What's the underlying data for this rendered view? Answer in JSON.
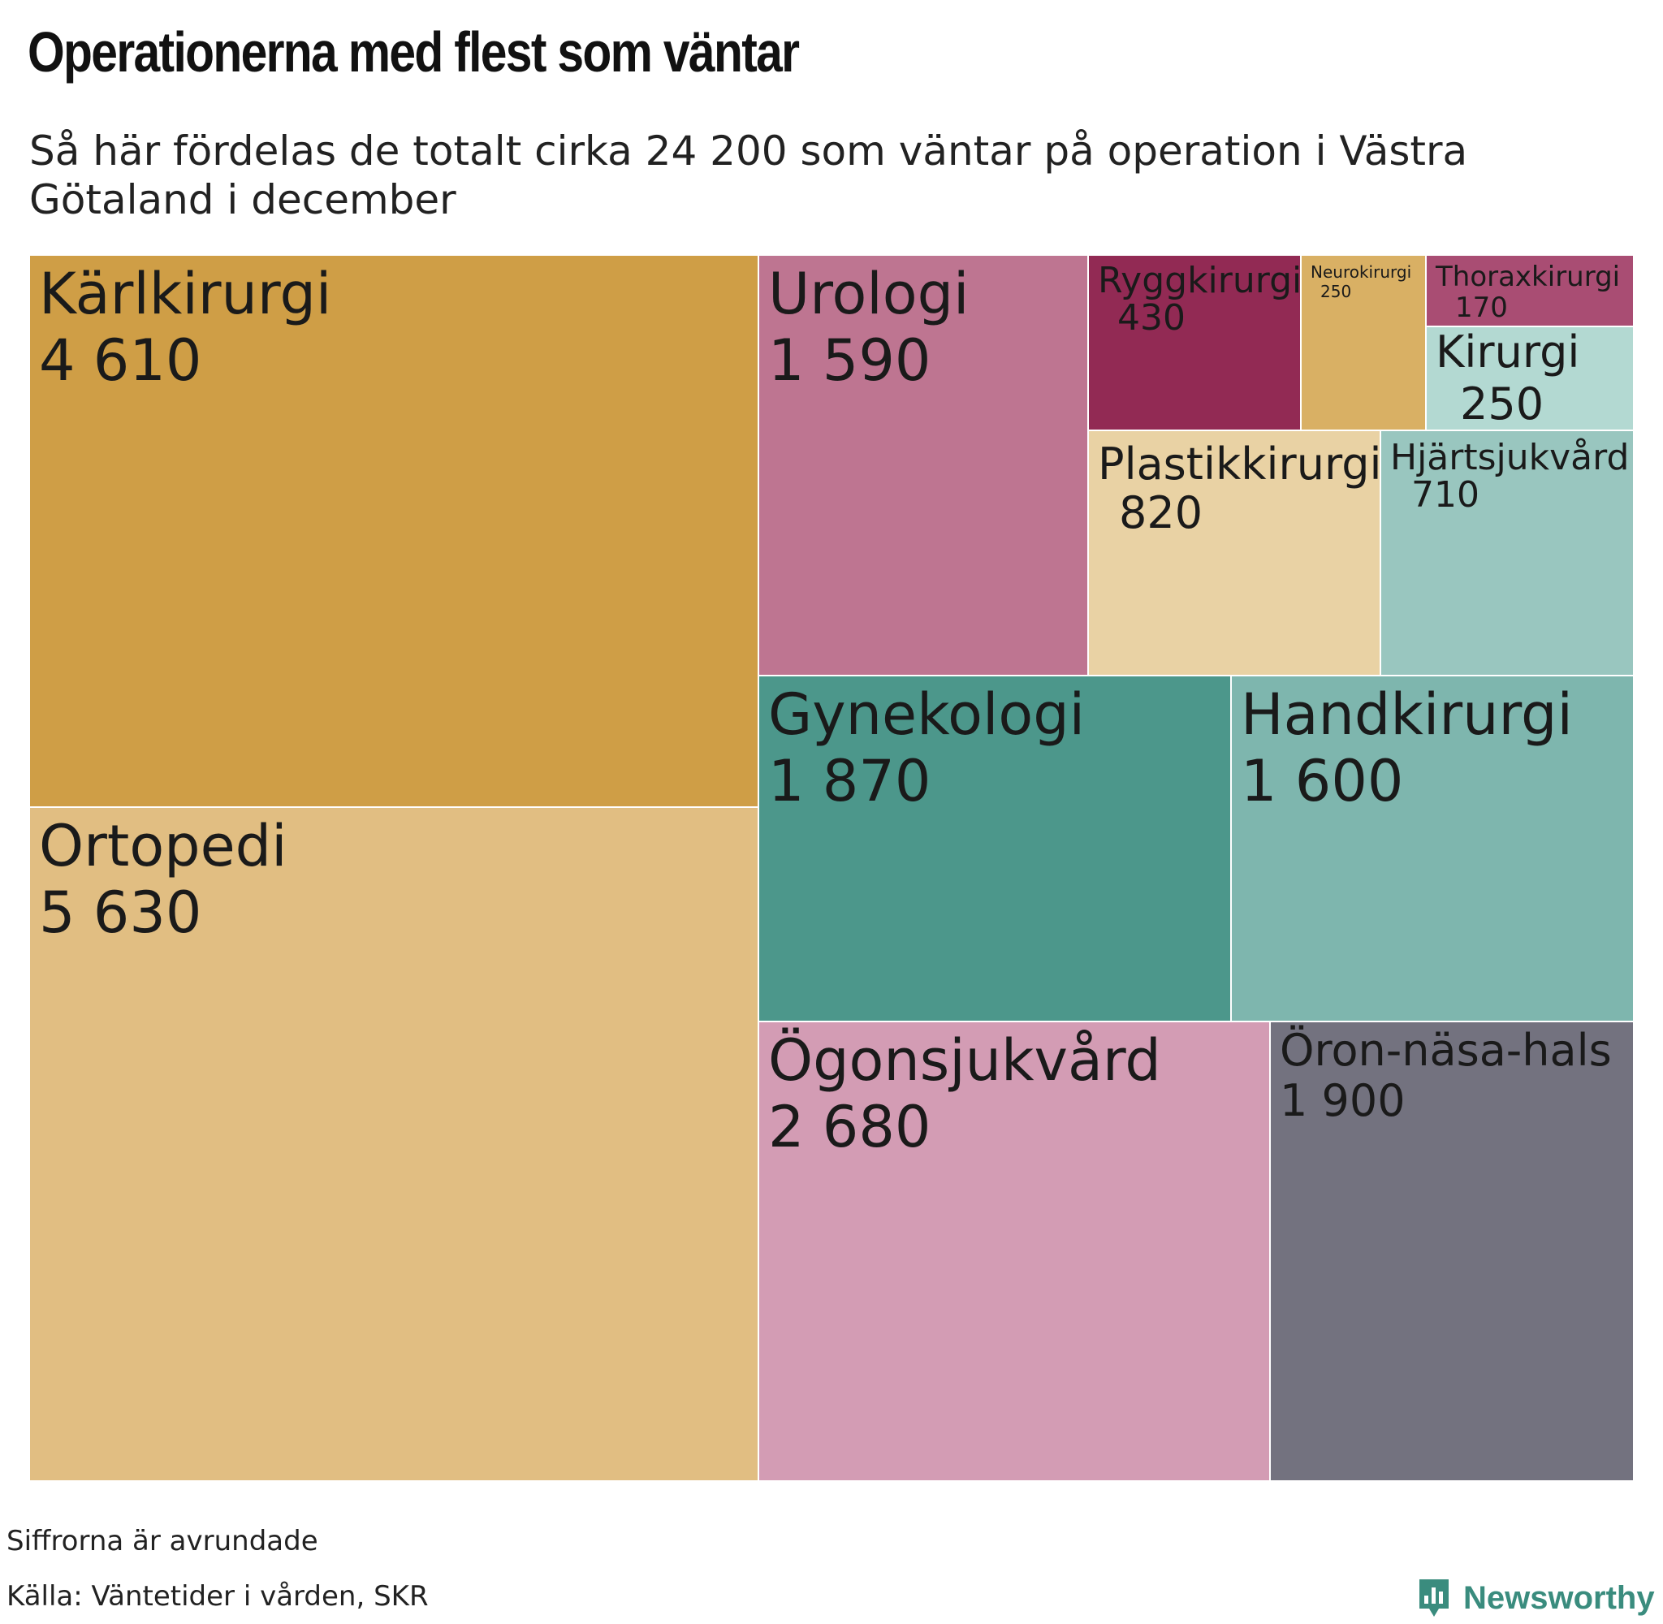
{
  "title": "Operationerna med flest som väntar",
  "subtitle": "Så här fördelas de totalt cirka 24 200 som väntar på operation i Västra Götaland i december",
  "notes": [
    "Siffrorna är avrundade",
    "Källa: Väntetider i vården, SKR"
  ],
  "brand": {
    "name": "Newsworthy",
    "icon": "newsworthy-logo-icon",
    "color": "#3a8c7e"
  },
  "chart_data": {
    "type": "treemap",
    "unit": "antal väntande",
    "items": [
      {
        "name": "Kärlkirurgi",
        "value": 4610,
        "label": "4 610",
        "color": "#cf9e46"
      },
      {
        "name": "Ortopedi",
        "value": 5630,
        "label": "5 630",
        "color": "#e1be82"
      },
      {
        "name": "Urologi",
        "value": 1590,
        "label": "1 590",
        "color": "#be7591"
      },
      {
        "name": "Ryggkirurgi",
        "value": 430,
        "label": "430",
        "color": "#922a54"
      },
      {
        "name": "Neurokirurgi",
        "value": 250,
        "label": "250",
        "color": "#d9b064"
      },
      {
        "name": "Thoraxkirurgi",
        "value": 170,
        "label": "170",
        "color": "#a94d73"
      },
      {
        "name": "Kirurgi",
        "value": 250,
        "label": "250",
        "color": "#b3d9d2"
      },
      {
        "name": "Plastikkirurgi",
        "value": 820,
        "label": "820",
        "color": "#e9d2a4"
      },
      {
        "name": "Hjärtsjukvård",
        "value": 710,
        "label": "710",
        "color": "#99c6bf"
      },
      {
        "name": "Gynekologi",
        "value": 1870,
        "label": "1 870",
        "color": "#4c978b"
      },
      {
        "name": "Handkirurgi",
        "value": 1600,
        "label": "1 600",
        "color": "#7eb6ae"
      },
      {
        "name": "Ögonsjukvård",
        "value": 2680,
        "label": "2 680",
        "color": "#d39cb4"
      },
      {
        "name": "Öron-näsa-hals",
        "value": 1900,
        "label": "1 900",
        "color": "#73727f"
      }
    ]
  }
}
